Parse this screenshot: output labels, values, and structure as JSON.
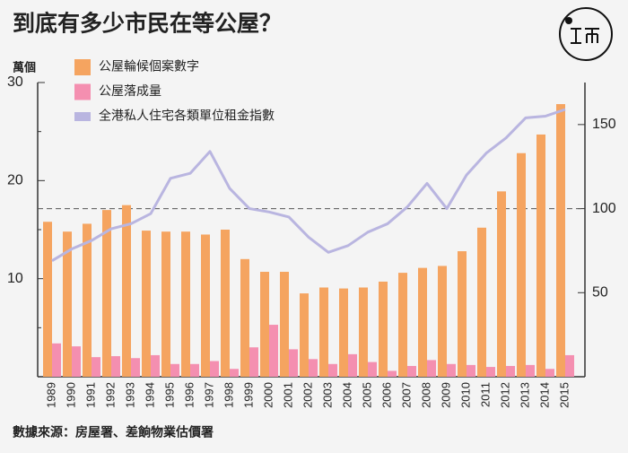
{
  "chart_data": {
    "type": "bar_line",
    "title": "到底有多少市民在等公屋？",
    "y_axis_label": "萬個",
    "source": "數據來源：房屋署、差餉物業估價署",
    "categories": [
      "1989",
      "1990",
      "1991",
      "1992",
      "1993",
      "1994",
      "1995",
      "1996",
      "1997",
      "1998",
      "1999",
      "2000",
      "2001",
      "2002",
      "2003",
      "2004",
      "2005",
      "2006",
      "2007",
      "2008",
      "2009",
      "2010",
      "2011",
      "2012",
      "2013",
      "2014",
      "2015"
    ],
    "series": [
      {
        "name": "公屋輪候個案數字",
        "color": "#f5a460",
        "type": "bar",
        "values": [
          15.8,
          14.8,
          15.6,
          17.0,
          17.5,
          14.9,
          14.8,
          14.8,
          14.5,
          15.0,
          12.0,
          10.7,
          10.7,
          8.5,
          9.1,
          9.0,
          9.1,
          9.7,
          10.6,
          11.1,
          11.3,
          12.8,
          15.2,
          18.9,
          22.8,
          24.7,
          27.8
        ]
      },
      {
        "name": "公屋落成量",
        "color": "#f48fb0",
        "type": "bar",
        "values": [
          3.4,
          3.1,
          2.0,
          2.1,
          1.9,
          2.2,
          1.3,
          1.3,
          1.6,
          0.8,
          3.0,
          5.3,
          2.8,
          1.8,
          1.3,
          2.3,
          1.5,
          0.6,
          1.1,
          1.7,
          1.3,
          1.2,
          1.0,
          1.1,
          1.2,
          0.8,
          2.2
        ]
      },
      {
        "name": "全港私人住宅各類單位租金指數",
        "color": "#b9b5e0",
        "type": "line",
        "axis": "y2",
        "values": [
          69,
          76,
          81,
          88,
          91,
          97,
          118,
          121,
          134,
          112,
          100,
          98,
          95,
          83,
          74,
          78,
          86,
          91,
          101,
          115,
          100,
          120,
          133,
          142,
          154,
          155,
          159
        ]
      }
    ],
    "ylim": [
      0,
      30
    ],
    "yticks": [
      10,
      20,
      30
    ],
    "y2lim": [
      0,
      175
    ],
    "y2ticks": [
      50,
      100,
      150
    ],
    "reference_line": {
      "axis": "y2",
      "value": 100
    }
  }
}
